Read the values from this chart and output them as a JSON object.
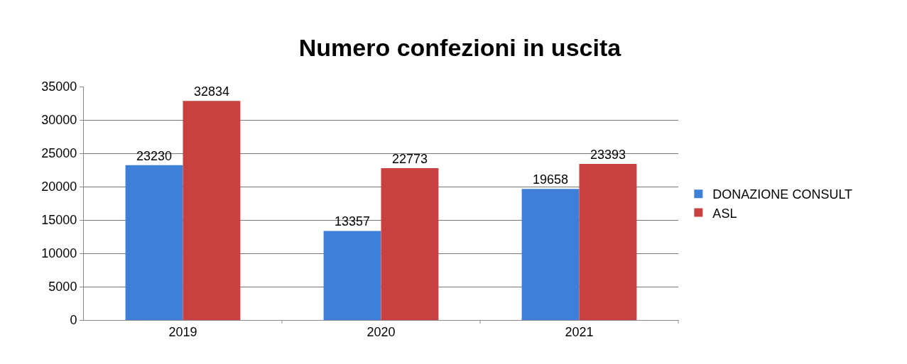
{
  "chart_data": {
    "type": "bar",
    "title": "Numero confezioni in uscita",
    "categories": [
      "2019",
      "2020",
      "2021"
    ],
    "series": [
      {
        "name": "DONAZIONE CONSULT",
        "color": "#3d7fd9",
        "values": [
          23230,
          13357,
          19658
        ]
      },
      {
        "name": "ASL",
        "color": "#c8403f",
        "values": [
          32834,
          22773,
          23393
        ]
      }
    ],
    "ylim": [
      0,
      35000
    ],
    "yticks": [
      0,
      5000,
      10000,
      15000,
      20000,
      25000,
      30000,
      35000
    ],
    "grid": "y",
    "legend": "right",
    "data_labels": true
  }
}
